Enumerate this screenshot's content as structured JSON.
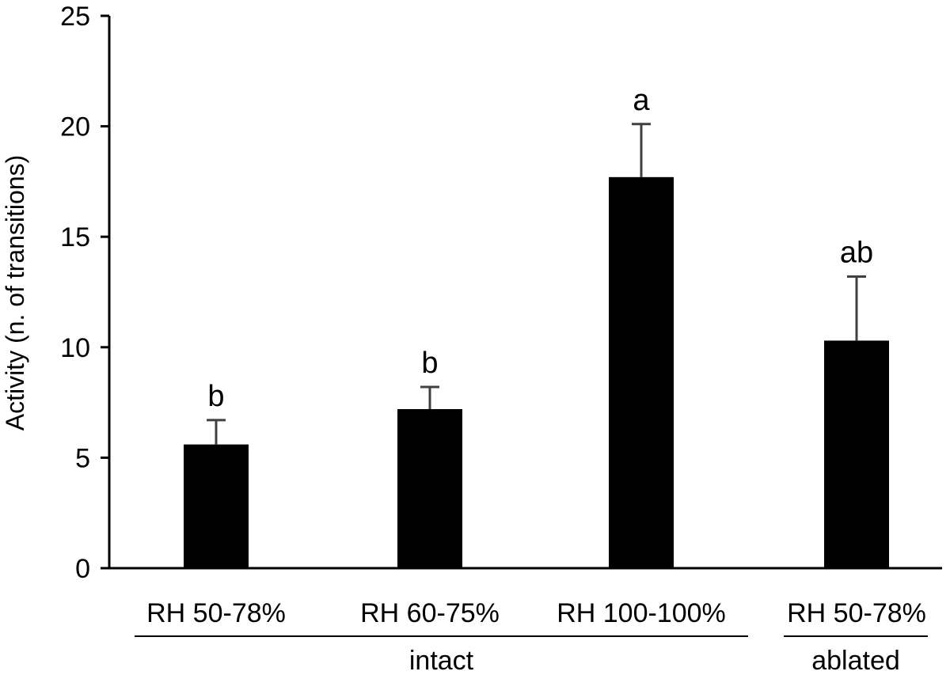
{
  "chart_data": {
    "type": "bar",
    "title": "",
    "xlabel": "",
    "ylabel": "Activity (n. of transitions)",
    "ylim": [
      0,
      25
    ],
    "yticks": [
      0,
      5,
      10,
      15,
      20,
      25
    ],
    "grid": false,
    "categories": [
      "RH 50-78%",
      "RH 60-75%",
      "RH 100-100%",
      "RH 50-78%"
    ],
    "values": [
      5.6,
      7.2,
      17.7,
      10.3
    ],
    "error": [
      1.1,
      1.0,
      2.4,
      2.9
    ],
    "significance": [
      "b",
      "b",
      "a",
      "ab"
    ],
    "groups": [
      {
        "label": "intact",
        "from": 0,
        "to": 2
      },
      {
        "label": "ablated",
        "from": 3,
        "to": 3
      }
    ],
    "colors": {
      "bar": "#000000",
      "error_bar": "#404040",
      "axis": "#000000"
    }
  }
}
